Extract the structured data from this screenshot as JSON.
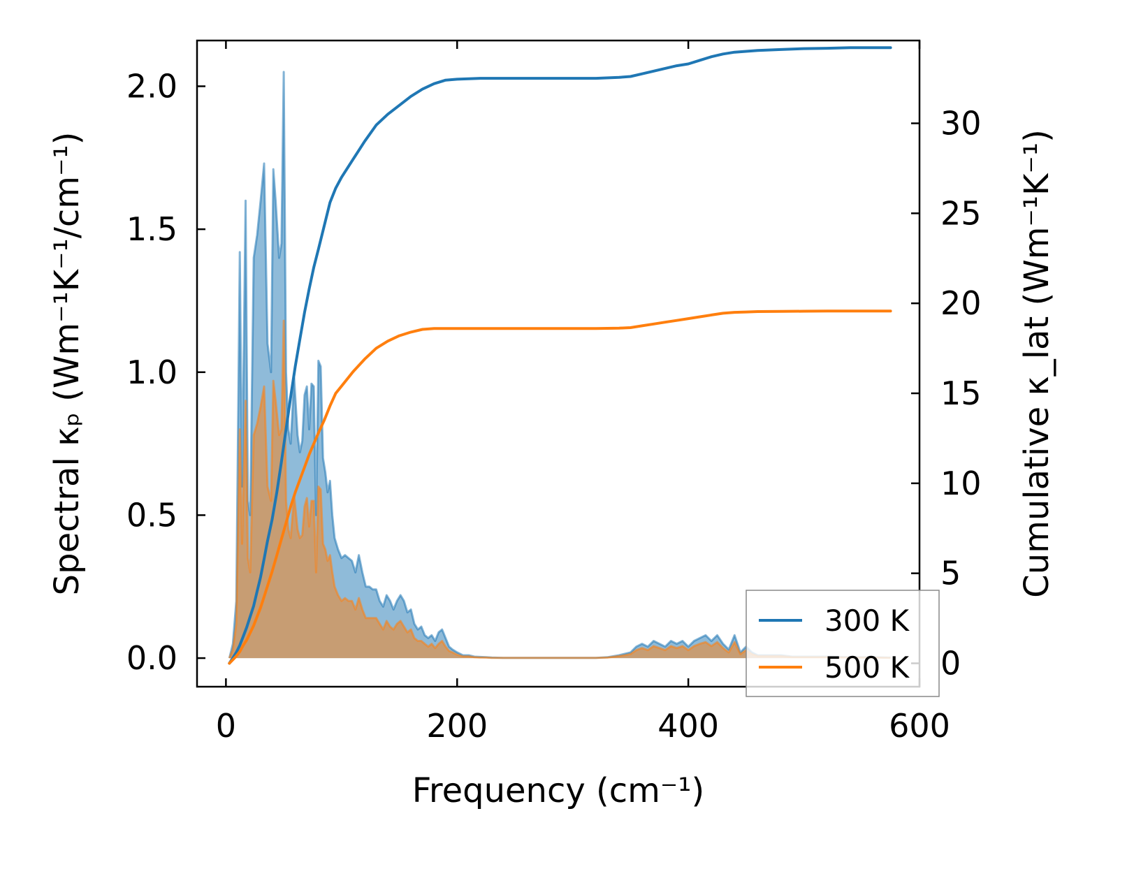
{
  "chart_data": {
    "type": "line",
    "xlabel": "Frequency (cm⁻¹)",
    "ylabel_left": "Spectral κₚ (Wm⁻¹K⁻¹/cm⁻¹)",
    "ylabel_right": "Cumulative κ_lat (Wm⁻¹K⁻¹)",
    "xlim": [
      -25,
      600
    ],
    "ylim_left": [
      -0.1,
      2.16
    ],
    "ylim_right": [
      -1.3,
      34.6
    ],
    "x_ticks": [
      "0",
      "200",
      "400",
      "600"
    ],
    "y_left_ticks": [
      "0.0",
      "0.5",
      "1.0",
      "1.5",
      "2.0"
    ],
    "y_right_ticks": [
      "0",
      "5",
      "10",
      "15",
      "20",
      "25",
      "30"
    ],
    "legend_position": "lower-right",
    "colors": {
      "300 K": "#1f77b4",
      "500 K": "#ff7f0e"
    },
    "series": [
      {
        "name": "300 K",
        "spectral": {
          "x": [
            3,
            6,
            9,
            12,
            14,
            17,
            19,
            21,
            24,
            27,
            30,
            33,
            36,
            39,
            41,
            43,
            46,
            48,
            50,
            52,
            54,
            56,
            59,
            62,
            64,
            66,
            68,
            70,
            72,
            74,
            76,
            78,
            80,
            82,
            84,
            86,
            88,
            90,
            92,
            94,
            97,
            100,
            103,
            106,
            109,
            112,
            115,
            118,
            121,
            124,
            127,
            130,
            133,
            136,
            139,
            142,
            145,
            148,
            151,
            154,
            157,
            160,
            163,
            166,
            169,
            172,
            175,
            178,
            181,
            184,
            187,
            190,
            193,
            196,
            200,
            205,
            210,
            215,
            220,
            225,
            230,
            240,
            260,
            280,
            300,
            320,
            330,
            340,
            345,
            350,
            355,
            360,
            365,
            370,
            375,
            380,
            385,
            390,
            395,
            400,
            405,
            410,
            415,
            420,
            425,
            430,
            435,
            440,
            445,
            450,
            455,
            460,
            470,
            480,
            490,
            500,
            520,
            540,
            560,
            575
          ],
          "y": [
            0.0,
            0.05,
            0.2,
            1.42,
            0.6,
            1.6,
            0.55,
            0.5,
            1.4,
            1.48,
            1.6,
            1.73,
            1.1,
            1.0,
            1.71,
            1.6,
            1.4,
            1.45,
            2.05,
            1.0,
            0.8,
            0.75,
            0.98,
            0.78,
            0.72,
            0.76,
            0.92,
            0.95,
            0.8,
            0.96,
            0.95,
            0.5,
            1.04,
            1.02,
            0.7,
            0.65,
            0.58,
            0.62,
            0.5,
            0.42,
            0.38,
            0.35,
            0.36,
            0.35,
            0.34,
            0.3,
            0.36,
            0.3,
            0.25,
            0.25,
            0.24,
            0.24,
            0.2,
            0.18,
            0.22,
            0.2,
            0.17,
            0.2,
            0.22,
            0.2,
            0.16,
            0.17,
            0.12,
            0.1,
            0.11,
            0.08,
            0.07,
            0.08,
            0.06,
            0.09,
            0.1,
            0.07,
            0.04,
            0.03,
            0.02,
            0.01,
            0.01,
            0.005,
            0.004,
            0.003,
            0.002,
            0.001,
            0.001,
            0.001,
            0.001,
            0.001,
            0.003,
            0.01,
            0.015,
            0.02,
            0.04,
            0.05,
            0.04,
            0.06,
            0.05,
            0.04,
            0.06,
            0.05,
            0.06,
            0.04,
            0.06,
            0.07,
            0.08,
            0.06,
            0.08,
            0.05,
            0.03,
            0.08,
            0.02,
            0.04,
            0.02,
            0.01,
            0.01,
            0.01,
            0.005,
            0.005,
            0.005,
            0.003,
            0.003,
            0.002
          ]
        },
        "cumulative": {
          "x": [
            3,
            6,
            9,
            12,
            15,
            18,
            21,
            24,
            27,
            30,
            33,
            36,
            40,
            44,
            48,
            52,
            56,
            60,
            64,
            68,
            72,
            76,
            80,
            85,
            90,
            95,
            100,
            110,
            120,
            130,
            140,
            150,
            160,
            170,
            180,
            190,
            200,
            220,
            250,
            280,
            300,
            320,
            340,
            350,
            360,
            370,
            380,
            390,
            400,
            410,
            420,
            430,
            440,
            450,
            460,
            480,
            500,
            520,
            540,
            560,
            575
          ],
          "y": [
            0.0,
            0.3,
            0.6,
            1.0,
            1.5,
            2.0,
            2.6,
            3.2,
            4.0,
            4.8,
            5.8,
            6.8,
            8.0,
            9.5,
            11.2,
            13.0,
            14.8,
            16.5,
            18.0,
            19.5,
            20.8,
            22.0,
            23.0,
            24.3,
            25.6,
            26.4,
            27.0,
            28.0,
            29.0,
            29.9,
            30.5,
            31.0,
            31.5,
            31.9,
            32.2,
            32.4,
            32.45,
            32.5,
            32.5,
            32.5,
            32.5,
            32.5,
            32.55,
            32.6,
            32.75,
            32.9,
            33.05,
            33.2,
            33.3,
            33.5,
            33.7,
            33.85,
            33.95,
            34.0,
            34.05,
            34.1,
            34.15,
            34.17,
            34.2,
            34.2,
            34.2
          ]
        }
      },
      {
        "name": "500 K",
        "spectral": {
          "x": [
            3,
            6,
            9,
            12,
            14,
            17,
            19,
            21,
            24,
            27,
            30,
            33,
            36,
            39,
            41,
            43,
            46,
            48,
            50,
            52,
            54,
            56,
            59,
            62,
            64,
            66,
            68,
            70,
            72,
            74,
            76,
            78,
            80,
            82,
            84,
            86,
            88,
            90,
            92,
            94,
            97,
            100,
            103,
            106,
            109,
            112,
            115,
            118,
            121,
            124,
            127,
            130,
            133,
            136,
            139,
            142,
            145,
            148,
            151,
            154,
            157,
            160,
            163,
            166,
            169,
            172,
            175,
            178,
            181,
            184,
            187,
            190,
            193,
            196,
            200,
            205,
            210,
            215,
            220,
            225,
            230,
            240,
            260,
            280,
            300,
            320,
            330,
            340,
            345,
            350,
            355,
            360,
            365,
            370,
            375,
            380,
            385,
            390,
            395,
            400,
            405,
            410,
            415,
            420,
            425,
            430,
            435,
            440,
            445,
            450,
            455,
            460,
            470,
            480,
            490,
            500,
            520,
            540,
            560,
            575
          ],
          "y": [
            0.0,
            0.03,
            0.12,
            0.8,
            0.4,
            0.9,
            0.35,
            0.3,
            0.78,
            0.82,
            0.88,
            0.95,
            0.6,
            0.55,
            0.97,
            0.9,
            0.78,
            0.8,
            1.18,
            0.55,
            0.45,
            0.42,
            0.57,
            0.45,
            0.42,
            0.43,
            0.53,
            0.56,
            0.46,
            0.55,
            0.55,
            0.3,
            0.6,
            0.59,
            0.4,
            0.38,
            0.34,
            0.36,
            0.3,
            0.25,
            0.22,
            0.2,
            0.21,
            0.2,
            0.2,
            0.17,
            0.21,
            0.17,
            0.14,
            0.14,
            0.14,
            0.14,
            0.12,
            0.1,
            0.13,
            0.11,
            0.1,
            0.12,
            0.13,
            0.11,
            0.09,
            0.1,
            0.07,
            0.06,
            0.06,
            0.05,
            0.04,
            0.05,
            0.035,
            0.05,
            0.06,
            0.04,
            0.025,
            0.02,
            0.012,
            0.006,
            0.006,
            0.003,
            0.002,
            0.002,
            0.001,
            0.001,
            0.001,
            0.001,
            0.001,
            0.001,
            0.002,
            0.007,
            0.01,
            0.014,
            0.028,
            0.035,
            0.028,
            0.042,
            0.035,
            0.028,
            0.042,
            0.035,
            0.042,
            0.028,
            0.042,
            0.05,
            0.056,
            0.042,
            0.056,
            0.035,
            0.02,
            0.056,
            0.014,
            0.028,
            0.014,
            0.007,
            0.007,
            0.007,
            0.003,
            0.003,
            0.003,
            0.002,
            0.002,
            0.001
          ]
        },
        "cumulative": {
          "x": [
            3,
            6,
            9,
            12,
            15,
            18,
            21,
            24,
            27,
            30,
            33,
            36,
            40,
            44,
            48,
            52,
            56,
            60,
            64,
            68,
            72,
            76,
            80,
            85,
            90,
            95,
            100,
            110,
            120,
            130,
            140,
            150,
            160,
            170,
            180,
            190,
            200,
            220,
            250,
            280,
            300,
            320,
            340,
            350,
            360,
            370,
            380,
            390,
            400,
            410,
            420,
            430,
            440,
            450,
            460,
            480,
            500,
            520,
            540,
            560,
            575
          ],
          "y": [
            0.0,
            0.2,
            0.4,
            0.65,
            1.0,
            1.3,
            1.7,
            2.1,
            2.6,
            3.1,
            3.7,
            4.3,
            5.1,
            6.0,
            6.9,
            7.8,
            8.7,
            9.5,
            10.2,
            10.9,
            11.6,
            12.2,
            12.8,
            13.5,
            14.3,
            15.0,
            15.4,
            16.2,
            16.9,
            17.5,
            17.9,
            18.2,
            18.4,
            18.55,
            18.6,
            18.6,
            18.6,
            18.6,
            18.6,
            18.6,
            18.6,
            18.6,
            18.62,
            18.65,
            18.75,
            18.85,
            18.95,
            19.05,
            19.15,
            19.25,
            19.35,
            19.45,
            19.5,
            19.52,
            19.54,
            19.55,
            19.56,
            19.57,
            19.57,
            19.57,
            19.57
          ]
        }
      }
    ]
  }
}
